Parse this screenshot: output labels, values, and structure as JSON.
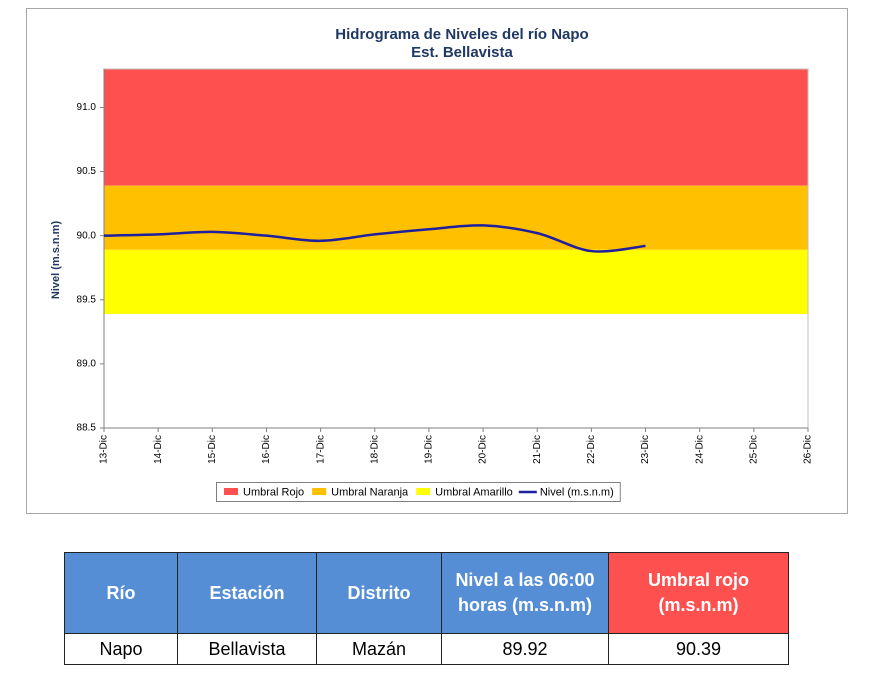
{
  "chart_data": {
    "type": "line",
    "title": "Hidrograma de Niveles del río Napo",
    "subtitle": "Est. Bellavista",
    "y_label": "Nivel (m.s.n.m)",
    "categories": [
      "13-Dic",
      "14-Dic",
      "15-Dic",
      "16-Dic",
      "17-Dic",
      "18-Dic",
      "19-Dic",
      "20-Dic",
      "21-Dic",
      "22-Dic",
      "23-Dic",
      "24-Dic",
      "25-Dic",
      "26-Dic"
    ],
    "thresholds": [
      {
        "name": "Umbral Rojo",
        "color": "#ff5050",
        "value": 90.39
      },
      {
        "name": "Umbral Naranja",
        "color": "#ffc000",
        "value": 89.89
      },
      {
        "name": "Umbral Amarillo",
        "color": "#ffff00",
        "value": 89.39
      }
    ],
    "series": [
      {
        "name": "Nivel (m.s.n.m)",
        "color": "#1f1fa0",
        "values": [
          90.0,
          90.01,
          90.03,
          90.0,
          89.96,
          90.01,
          90.05,
          90.08,
          90.02,
          89.88,
          89.92,
          null,
          null,
          null
        ]
      }
    ],
    "ylim": [
      88.5,
      91.3
    ],
    "yticks": [
      88.5,
      {
        "value": 89,
        "label": "89.0"
      },
      89.5,
      {
        "value": 90,
        "label": "90.0"
      },
      90.5,
      {
        "value": 91,
        "label": "91.0"
      }
    ],
    "legend": "bottom"
  },
  "table": {
    "headers": [
      "Río",
      "Estación",
      "Distrito",
      "Nivel a las 06:00 horas (m.s.n.m)",
      "Umbral rojo (m.s.n.m)"
    ],
    "rows": [
      [
        "Napo",
        "Bellavista",
        "Mazán",
        "89.92",
        "90.39"
      ]
    ]
  }
}
